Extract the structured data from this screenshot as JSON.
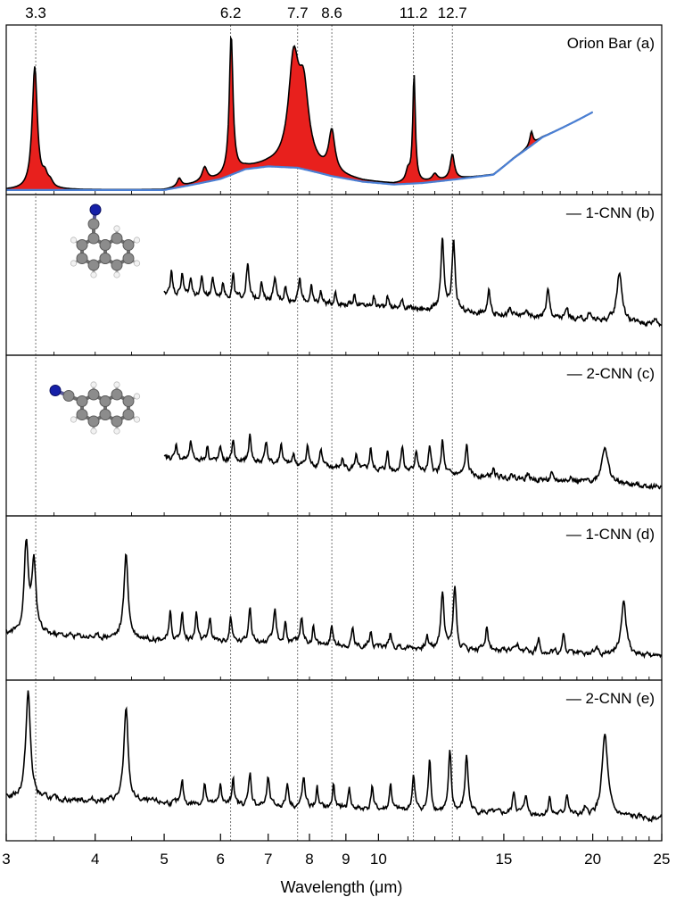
{
  "chart_data": {
    "type": "line",
    "xlabel": "Wavelength  (μm)",
    "x_scale": "log",
    "xlim": [
      3,
      25
    ],
    "x_ticks": [
      3,
      4,
      5,
      6,
      7,
      8,
      9,
      10,
      15,
      20,
      25
    ],
    "grid": false,
    "reference_lines": [
      {
        "x": 3.3,
        "label": "3.3"
      },
      {
        "x": 6.2,
        "label": "6.2"
      },
      {
        "x": 7.7,
        "label": "7.7"
      },
      {
        "x": 8.6,
        "label": "8.6"
      },
      {
        "x": 11.2,
        "label": "11.2"
      },
      {
        "x": 12.7,
        "label": "12.7"
      }
    ],
    "panels": [
      {
        "id": "a",
        "label": "Orion Bar (a)",
        "legend_line": false,
        "fill_color": "#e8201d",
        "continuum_color": "#4a7fd4",
        "continuum": [
          [
            3.0,
            0.02
          ],
          [
            4.0,
            0.02
          ],
          [
            5.0,
            0.02
          ],
          [
            6.0,
            0.1
          ],
          [
            6.5,
            0.17
          ],
          [
            7.0,
            0.19
          ],
          [
            7.7,
            0.18
          ],
          [
            8.6,
            0.12
          ],
          [
            9.5,
            0.08
          ],
          [
            10.5,
            0.06
          ],
          [
            11.5,
            0.07
          ],
          [
            12.5,
            0.09
          ],
          [
            13.5,
            0.11
          ],
          [
            14.5,
            0.13
          ],
          [
            15.5,
            0.25
          ],
          [
            17.0,
            0.4
          ],
          [
            19.0,
            0.52
          ],
          [
            20.0,
            0.58
          ]
        ],
        "peaks": [
          {
            "x": 3.29,
            "h": 0.88,
            "w": 0.01
          },
          {
            "x": 3.4,
            "h": 0.08,
            "w": 0.01
          },
          {
            "x": 3.46,
            "h": 0.04,
            "w": 0.01
          },
          {
            "x": 5.25,
            "h": 0.06,
            "w": 0.008
          },
          {
            "x": 5.7,
            "h": 0.1,
            "w": 0.01
          },
          {
            "x": 6.21,
            "h": 1.0,
            "w": 0.007
          },
          {
            "x": 7.6,
            "h": 0.72,
            "w": 0.02
          },
          {
            "x": 7.85,
            "h": 0.52,
            "w": 0.02
          },
          {
            "x": 8.6,
            "h": 0.3,
            "w": 0.012
          },
          {
            "x": 11.22,
            "h": 0.78,
            "w": 0.005
          },
          {
            "x": 11.0,
            "h": 0.08,
            "w": 0.008
          },
          {
            "x": 12.0,
            "h": 0.05,
            "w": 0.01
          },
          {
            "x": 12.7,
            "h": 0.18,
            "w": 0.008
          },
          {
            "x": 16.4,
            "h": 0.1,
            "w": 0.006
          }
        ]
      },
      {
        "id": "b",
        "label": "1-CNN (b)",
        "legend_line": true,
        "x_range": [
          5.0,
          25.0
        ],
        "baseline": 0.45,
        "noise": 0.03,
        "peaks": [
          {
            "x": 5.12,
            "h": 0.2,
            "w": 0.004
          },
          {
            "x": 5.3,
            "h": 0.18,
            "w": 0.004
          },
          {
            "x": 5.45,
            "h": 0.15,
            "w": 0.004
          },
          {
            "x": 5.65,
            "h": 0.14,
            "w": 0.004
          },
          {
            "x": 5.85,
            "h": 0.16,
            "w": 0.004
          },
          {
            "x": 6.05,
            "h": 0.12,
            "w": 0.004
          },
          {
            "x": 6.25,
            "h": 0.18,
            "w": 0.004
          },
          {
            "x": 6.55,
            "h": 0.28,
            "w": 0.005
          },
          {
            "x": 6.85,
            "h": 0.14,
            "w": 0.004
          },
          {
            "x": 7.15,
            "h": 0.18,
            "w": 0.005
          },
          {
            "x": 7.4,
            "h": 0.12,
            "w": 0.004
          },
          {
            "x": 7.75,
            "h": 0.18,
            "w": 0.005
          },
          {
            "x": 8.05,
            "h": 0.12,
            "w": 0.004
          },
          {
            "x": 8.3,
            "h": 0.1,
            "w": 0.004
          },
          {
            "x": 8.7,
            "h": 0.1,
            "w": 0.004
          },
          {
            "x": 9.25,
            "h": 0.1,
            "w": 0.004
          },
          {
            "x": 9.85,
            "h": 0.08,
            "w": 0.004
          },
          {
            "x": 10.3,
            "h": 0.1,
            "w": 0.004
          },
          {
            "x": 10.8,
            "h": 0.08,
            "w": 0.004
          },
          {
            "x": 12.3,
            "h": 0.55,
            "w": 0.006
          },
          {
            "x": 12.75,
            "h": 0.55,
            "w": 0.006
          },
          {
            "x": 14.3,
            "h": 0.18,
            "w": 0.005
          },
          {
            "x": 15.3,
            "h": 0.05,
            "w": 0.004
          },
          {
            "x": 16.1,
            "h": 0.05,
            "w": 0.004
          },
          {
            "x": 17.3,
            "h": 0.22,
            "w": 0.006
          },
          {
            "x": 18.4,
            "h": 0.08,
            "w": 0.005
          },
          {
            "x": 19.8,
            "h": 0.06,
            "w": 0.005
          },
          {
            "x": 21.8,
            "h": 0.4,
            "w": 0.01
          },
          {
            "x": 24.5,
            "h": 0.05,
            "w": 0.006
          }
        ]
      },
      {
        "id": "c",
        "label": "2-CNN (c)",
        "legend_line": true,
        "x_range": [
          5.0,
          25.0
        ],
        "baseline": 0.42,
        "noise": 0.03,
        "peaks": [
          {
            "x": 5.2,
            "h": 0.12,
            "w": 0.004
          },
          {
            "x": 5.45,
            "h": 0.14,
            "w": 0.004
          },
          {
            "x": 5.75,
            "h": 0.12,
            "w": 0.004
          },
          {
            "x": 6.0,
            "h": 0.12,
            "w": 0.004
          },
          {
            "x": 6.25,
            "h": 0.18,
            "w": 0.004
          },
          {
            "x": 6.6,
            "h": 0.22,
            "w": 0.005
          },
          {
            "x": 6.95,
            "h": 0.18,
            "w": 0.005
          },
          {
            "x": 7.3,
            "h": 0.16,
            "w": 0.005
          },
          {
            "x": 7.6,
            "h": 0.1,
            "w": 0.004
          },
          {
            "x": 7.95,
            "h": 0.16,
            "w": 0.005
          },
          {
            "x": 8.3,
            "h": 0.14,
            "w": 0.005
          },
          {
            "x": 8.9,
            "h": 0.08,
            "w": 0.004
          },
          {
            "x": 9.3,
            "h": 0.12,
            "w": 0.004
          },
          {
            "x": 9.75,
            "h": 0.18,
            "w": 0.004
          },
          {
            "x": 10.3,
            "h": 0.16,
            "w": 0.004
          },
          {
            "x": 10.8,
            "h": 0.2,
            "w": 0.005
          },
          {
            "x": 11.3,
            "h": 0.18,
            "w": 0.005
          },
          {
            "x": 11.8,
            "h": 0.2,
            "w": 0.005
          },
          {
            "x": 12.3,
            "h": 0.26,
            "w": 0.005
          },
          {
            "x": 13.3,
            "h": 0.24,
            "w": 0.005
          },
          {
            "x": 14.5,
            "h": 0.06,
            "w": 0.005
          },
          {
            "x": 15.4,
            "h": 0.05,
            "w": 0.004
          },
          {
            "x": 16.2,
            "h": 0.05,
            "w": 0.004
          },
          {
            "x": 17.5,
            "h": 0.05,
            "w": 0.004
          },
          {
            "x": 18.6,
            "h": 0.05,
            "w": 0.004
          },
          {
            "x": 20.8,
            "h": 0.3,
            "w": 0.012
          }
        ]
      },
      {
        "id": "d",
        "label": "1-CNN (d)",
        "legend_line": true,
        "x_range": [
          3.0,
          25.0
        ],
        "baseline": 0.32,
        "noise": 0.035,
        "peaks": [
          {
            "x": 3.2,
            "h": 0.7,
            "w": 0.008
          },
          {
            "x": 3.28,
            "h": 0.55,
            "w": 0.008
          },
          {
            "x": 4.42,
            "h": 0.65,
            "w": 0.008
          },
          {
            "x": 5.1,
            "h": 0.2,
            "w": 0.004
          },
          {
            "x": 5.3,
            "h": 0.22,
            "w": 0.004
          },
          {
            "x": 5.55,
            "h": 0.22,
            "w": 0.004
          },
          {
            "x": 5.8,
            "h": 0.18,
            "w": 0.004
          },
          {
            "x": 6.2,
            "h": 0.2,
            "w": 0.004
          },
          {
            "x": 6.6,
            "h": 0.3,
            "w": 0.005
          },
          {
            "x": 7.15,
            "h": 0.26,
            "w": 0.005
          },
          {
            "x": 7.4,
            "h": 0.18,
            "w": 0.004
          },
          {
            "x": 7.8,
            "h": 0.22,
            "w": 0.005
          },
          {
            "x": 8.1,
            "h": 0.14,
            "w": 0.004
          },
          {
            "x": 8.6,
            "h": 0.16,
            "w": 0.004
          },
          {
            "x": 9.2,
            "h": 0.14,
            "w": 0.004
          },
          {
            "x": 9.75,
            "h": 0.14,
            "w": 0.004
          },
          {
            "x": 10.4,
            "h": 0.12,
            "w": 0.004
          },
          {
            "x": 11.7,
            "h": 0.1,
            "w": 0.004
          },
          {
            "x": 12.3,
            "h": 0.45,
            "w": 0.006
          },
          {
            "x": 12.8,
            "h": 0.5,
            "w": 0.006
          },
          {
            "x": 14.2,
            "h": 0.2,
            "w": 0.005
          },
          {
            "x": 15.7,
            "h": 0.04,
            "w": 0.004
          },
          {
            "x": 16.8,
            "h": 0.1,
            "w": 0.005
          },
          {
            "x": 18.2,
            "h": 0.14,
            "w": 0.005
          },
          {
            "x": 20.2,
            "h": 0.06,
            "w": 0.006
          },
          {
            "x": 22.1,
            "h": 0.42,
            "w": 0.01
          }
        ]
      },
      {
        "id": "e",
        "label": "2-CNN (e)",
        "legend_line": true,
        "x_range": [
          3.0,
          25.0
        ],
        "baseline": 0.3,
        "noise": 0.035,
        "peaks": [
          {
            "x": 3.22,
            "h": 0.85,
            "w": 0.009
          },
          {
            "x": 4.42,
            "h": 0.75,
            "w": 0.008
          },
          {
            "x": 5.3,
            "h": 0.18,
            "w": 0.004
          },
          {
            "x": 5.7,
            "h": 0.18,
            "w": 0.004
          },
          {
            "x": 6.0,
            "h": 0.18,
            "w": 0.004
          },
          {
            "x": 6.25,
            "h": 0.24,
            "w": 0.004
          },
          {
            "x": 6.6,
            "h": 0.26,
            "w": 0.005
          },
          {
            "x": 7.0,
            "h": 0.22,
            "w": 0.005
          },
          {
            "x": 7.45,
            "h": 0.18,
            "w": 0.005
          },
          {
            "x": 7.85,
            "h": 0.24,
            "w": 0.005
          },
          {
            "x": 8.2,
            "h": 0.16,
            "w": 0.004
          },
          {
            "x": 8.65,
            "h": 0.2,
            "w": 0.004
          },
          {
            "x": 9.1,
            "h": 0.18,
            "w": 0.004
          },
          {
            "x": 9.8,
            "h": 0.2,
            "w": 0.004
          },
          {
            "x": 10.4,
            "h": 0.22,
            "w": 0.004
          },
          {
            "x": 11.2,
            "h": 0.28,
            "w": 0.005
          },
          {
            "x": 11.8,
            "h": 0.4,
            "w": 0.005
          },
          {
            "x": 12.6,
            "h": 0.48,
            "w": 0.005
          },
          {
            "x": 13.3,
            "h": 0.45,
            "w": 0.006
          },
          {
            "x": 15.5,
            "h": 0.18,
            "w": 0.005
          },
          {
            "x": 16.1,
            "h": 0.16,
            "w": 0.005
          },
          {
            "x": 17.4,
            "h": 0.14,
            "w": 0.005
          },
          {
            "x": 18.4,
            "h": 0.18,
            "w": 0.005
          },
          {
            "x": 19.5,
            "h": 0.05,
            "w": 0.004
          },
          {
            "x": 20.8,
            "h": 0.65,
            "w": 0.011
          }
        ]
      }
    ]
  },
  "molecules": [
    {
      "panel": "b",
      "name": "1-CNN molecule"
    },
    {
      "panel": "c",
      "name": "2-CNN molecule"
    }
  ]
}
